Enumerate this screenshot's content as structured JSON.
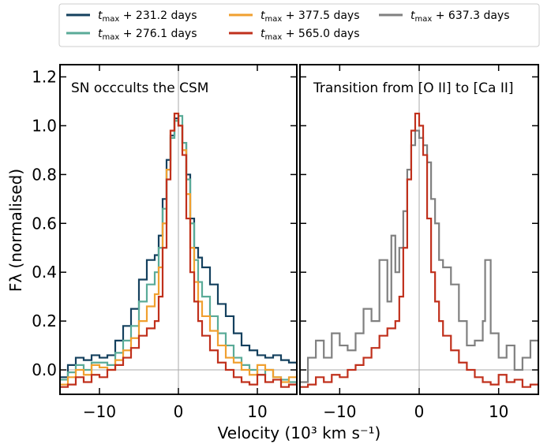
{
  "chart_data": [
    {
      "type": "line",
      "annotation": "SN occcults the CSM",
      "xlabel": "Velocity (10³ km s⁻¹)",
      "ylabel": "Fλ (normalised)",
      "xlim": [
        -15,
        15
      ],
      "ylim": [
        -0.1,
        1.25
      ],
      "xticks": [
        -10,
        0,
        10
      ],
      "yticks": [
        0.0,
        0.2,
        0.4,
        0.6,
        0.8,
        1.0,
        1.2
      ],
      "reference_lines": {
        "x": 0,
        "y": 0,
        "color": "#aaaaaa"
      },
      "series": [
        {
          "name": "t_max + 231.2 days",
          "color": "#14405e",
          "x": [
            -15,
            -14,
            -13,
            -12,
            -11,
            -10,
            -9,
            -8,
            -7,
            -6,
            -5,
            -4,
            -3,
            -2.5,
            -2,
            -1.5,
            -1,
            -0.5,
            0,
            0.5,
            1,
            1.5,
            2,
            2.5,
            3,
            4,
            5,
            6,
            7,
            8,
            9,
            10,
            11,
            12,
            13,
            14,
            15
          ],
          "y": [
            -0.03,
            0.02,
            0.05,
            0.04,
            0.06,
            0.05,
            0.06,
            0.12,
            0.18,
            0.25,
            0.37,
            0.45,
            0.47,
            0.55,
            0.7,
            0.86,
            0.96,
            1.03,
            1.0,
            0.93,
            0.8,
            0.62,
            0.5,
            0.46,
            0.42,
            0.35,
            0.27,
            0.22,
            0.15,
            0.1,
            0.08,
            0.06,
            0.05,
            0.06,
            0.04,
            0.03,
            0.02
          ]
        },
        {
          "name": "t_max + 276.1 days",
          "color": "#5aab98",
          "x": [
            -15,
            -14,
            -13,
            -12,
            -11,
            -10,
            -9,
            -8,
            -7,
            -6,
            -5,
            -4,
            -3,
            -2.5,
            -2,
            -1.5,
            -1,
            -0.5,
            0,
            0.5,
            1,
            1.5,
            2,
            2.5,
            3,
            4,
            5,
            6,
            7,
            8,
            9,
            10,
            11,
            12,
            13,
            14,
            15
          ],
          "y": [
            -0.04,
            -0.01,
            0.02,
            0.0,
            0.03,
            0.03,
            0.02,
            0.07,
            0.12,
            0.18,
            0.28,
            0.35,
            0.4,
            0.5,
            0.66,
            0.82,
            0.95,
            1.02,
            1.04,
            0.93,
            0.78,
            0.6,
            0.45,
            0.36,
            0.3,
            0.22,
            0.15,
            0.1,
            0.05,
            0.02,
            0.0,
            -0.02,
            0.0,
            -0.03,
            -0.04,
            -0.05,
            -0.06
          ]
        },
        {
          "name": "t_max + 377.5 days",
          "color": "#f0a030",
          "x": [
            -15,
            -14,
            -13,
            -12,
            -11,
            -10,
            -9,
            -8,
            -7,
            -6,
            -5,
            -4,
            -3,
            -2.5,
            -2,
            -1.5,
            -1,
            -0.5,
            0,
            0.5,
            1,
            1.5,
            2,
            2.5,
            3,
            4,
            5,
            6,
            7,
            8,
            9,
            10,
            11,
            12,
            13,
            14,
            15
          ],
          "y": [
            -0.06,
            -0.03,
            0.0,
            -0.02,
            0.02,
            0.01,
            0.0,
            0.04,
            0.08,
            0.13,
            0.2,
            0.26,
            0.31,
            0.42,
            0.6,
            0.82,
            0.98,
            1.05,
            1.0,
            0.9,
            0.72,
            0.5,
            0.36,
            0.28,
            0.22,
            0.16,
            0.1,
            0.05,
            0.03,
            0.0,
            -0.02,
            0.02,
            0.0,
            -0.03,
            -0.05,
            -0.03,
            -0.02
          ]
        },
        {
          "name": "t_max + 565.0 days",
          "color": "#c0301c",
          "x": [
            -15,
            -14,
            -13,
            -12,
            -11,
            -10,
            -9,
            -8,
            -7,
            -6,
            -5,
            -4,
            -3,
            -2.5,
            -2,
            -1.5,
            -1,
            -0.5,
            0,
            0.5,
            1,
            1.5,
            2,
            2.5,
            3,
            4,
            5,
            6,
            7,
            8,
            9,
            10,
            11,
            12,
            13,
            14,
            15
          ],
          "y": [
            -0.07,
            -0.06,
            -0.03,
            -0.05,
            -0.02,
            -0.03,
            0.0,
            0.02,
            0.05,
            0.09,
            0.14,
            0.17,
            0.2,
            0.3,
            0.5,
            0.78,
            0.98,
            1.05,
            1.0,
            0.88,
            0.62,
            0.4,
            0.28,
            0.2,
            0.14,
            0.08,
            0.03,
            0.0,
            -0.03,
            -0.05,
            -0.06,
            -0.02,
            -0.05,
            -0.04,
            -0.07,
            -0.06,
            -0.05
          ]
        }
      ]
    },
    {
      "type": "line",
      "annotation": "Transition from [O II] to [Ca II]",
      "xlabel": "Velocity (10³ km s⁻¹)",
      "xlim": [
        -15,
        15
      ],
      "ylim": [
        -0.1,
        1.25
      ],
      "xticks": [
        -10,
        0,
        10
      ],
      "reference_lines": {
        "x": 0,
        "y": 0,
        "color": "#aaaaaa"
      },
      "series": [
        {
          "name": "t_max + 637.3 days",
          "color": "#808080",
          "x": [
            -15,
            -14,
            -13,
            -12,
            -11,
            -10,
            -9,
            -8,
            -7,
            -6,
            -5,
            -4,
            -3.5,
            -3,
            -2.5,
            -2,
            -1.5,
            -1,
            -0.5,
            0,
            0.5,
            1,
            1.5,
            2,
            2.5,
            3,
            4,
            5,
            6,
            7,
            8,
            8.3,
            9,
            10,
            11,
            12,
            13,
            14,
            15
          ],
          "y": [
            -0.05,
            0.05,
            0.12,
            0.05,
            0.15,
            0.1,
            0.08,
            0.15,
            0.25,
            0.2,
            0.45,
            0.28,
            0.55,
            0.4,
            0.5,
            0.65,
            0.82,
            0.92,
            0.98,
            0.95,
            0.92,
            0.85,
            0.7,
            0.6,
            0.45,
            0.42,
            0.35,
            0.2,
            0.1,
            0.12,
            0.2,
            0.45,
            0.15,
            0.05,
            0.1,
            0.0,
            0.05,
            0.12,
            -0.02
          ]
        },
        {
          "name": "t_max + 565.0 days",
          "color": "#c0301c",
          "x": [
            -15,
            -14,
            -13,
            -12,
            -11,
            -10,
            -9,
            -8,
            -7,
            -6,
            -5,
            -4,
            -3,
            -2.5,
            -2,
            -1.5,
            -1,
            -0.5,
            0,
            0.5,
            1,
            1.5,
            2,
            2.5,
            3,
            4,
            5,
            6,
            7,
            8,
            9,
            10,
            11,
            12,
            13,
            14,
            15
          ],
          "y": [
            -0.07,
            -0.06,
            -0.03,
            -0.05,
            -0.02,
            -0.03,
            0.0,
            0.02,
            0.05,
            0.09,
            0.14,
            0.17,
            0.2,
            0.3,
            0.5,
            0.78,
            0.98,
            1.05,
            1.0,
            0.88,
            0.62,
            0.4,
            0.28,
            0.2,
            0.14,
            0.08,
            0.03,
            0.0,
            -0.03,
            -0.05,
            -0.06,
            -0.02,
            -0.05,
            -0.04,
            -0.07,
            -0.06,
            -0.05
          ]
        }
      ]
    }
  ],
  "legend": {
    "placement": "top",
    "entries": [
      {
        "prefix": "t",
        "sub": "max",
        "suffix": " + 231.2 days",
        "color": "#14405e"
      },
      {
        "prefix": "t",
        "sub": "max",
        "suffix": " + 276.1 days",
        "color": "#5aab98"
      },
      {
        "prefix": "t",
        "sub": "max",
        "suffix": " + 377.5 days",
        "color": "#f0a030"
      },
      {
        "prefix": "t",
        "sub": "max",
        "suffix": " + 565.0 days",
        "color": "#c0301c"
      },
      {
        "prefix": "t",
        "sub": "max",
        "suffix": " + 637.3 days",
        "color": "#808080"
      }
    ]
  }
}
